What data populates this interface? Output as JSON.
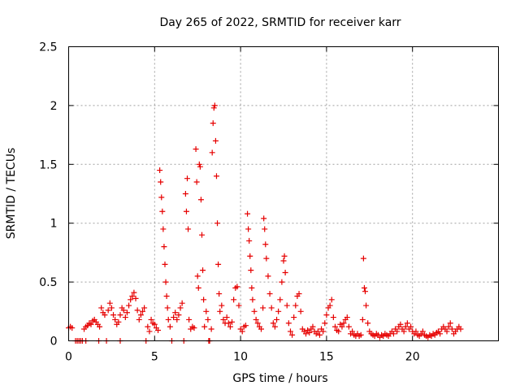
{
  "chart_data": {
    "type": "scatter",
    "title": "Day 265 of 2022, SRMTID for receiver karr",
    "xlabel": "GPS time / hours",
    "ylabel": "SRMTID / TECUs",
    "xlim": [
      0,
      25
    ],
    "ylim": [
      0,
      2.5
    ],
    "xticks": [
      0,
      5,
      10,
      15,
      20
    ],
    "yticks": [
      0,
      0.5,
      1,
      1.5,
      2,
      2.5
    ],
    "xtick_labels": [
      "0",
      "5",
      "10",
      "15",
      "20"
    ],
    "ytick_labels": [
      "0",
      "0.5",
      "1",
      "1.5",
      "2",
      "2.5"
    ],
    "grid": true,
    "marker": "+",
    "color": "#e60000",
    "series": [
      {
        "name": "SRMTID",
        "points": [
          [
            0.0,
            0.11
          ],
          [
            0.1,
            0.12
          ],
          [
            0.2,
            0.11
          ],
          [
            0.4,
            0.0
          ],
          [
            0.5,
            0.0
          ],
          [
            0.6,
            0.0
          ],
          [
            0.7,
            0.0
          ],
          [
            0.8,
            0.0
          ],
          [
            0.9,
            0.1
          ],
          [
            1.0,
            0.0
          ],
          [
            1.0,
            0.12
          ],
          [
            1.1,
            0.13
          ],
          [
            1.2,
            0.15
          ],
          [
            1.3,
            0.14
          ],
          [
            1.4,
            0.17
          ],
          [
            1.5,
            0.18
          ],
          [
            1.6,
            0.16
          ],
          [
            1.7,
            0.14
          ],
          [
            1.75,
            0.0
          ],
          [
            1.8,
            0.12
          ],
          [
            1.9,
            0.28
          ],
          [
            2.0,
            0.24
          ],
          [
            2.1,
            0.22
          ],
          [
            2.2,
            0.0
          ],
          [
            2.3,
            0.26
          ],
          [
            2.4,
            0.32
          ],
          [
            2.5,
            0.28
          ],
          [
            2.6,
            0.22
          ],
          [
            2.7,
            0.18
          ],
          [
            2.8,
            0.14
          ],
          [
            2.9,
            0.16
          ],
          [
            3.0,
            0.0
          ],
          [
            3.0,
            0.22
          ],
          [
            3.1,
            0.28
          ],
          [
            3.2,
            0.26
          ],
          [
            3.3,
            0.2
          ],
          [
            3.4,
            0.24
          ],
          [
            3.5,
            0.3
          ],
          [
            3.6,
            0.35
          ],
          [
            3.7,
            0.38
          ],
          [
            3.8,
            0.41
          ],
          [
            3.9,
            0.36
          ],
          [
            4.0,
            0.26
          ],
          [
            4.1,
            0.18
          ],
          [
            4.2,
            0.22
          ],
          [
            4.3,
            0.25
          ],
          [
            4.4,
            0.28
          ],
          [
            4.5,
            0.0
          ],
          [
            4.6,
            0.12
          ],
          [
            4.7,
            0.08
          ],
          [
            4.8,
            0.18
          ],
          [
            4.9,
            0.15
          ],
          [
            5.0,
            0.14
          ],
          [
            5.1,
            0.11
          ],
          [
            5.2,
            0.09
          ],
          [
            5.3,
            1.45
          ],
          [
            5.35,
            1.35
          ],
          [
            5.4,
            1.22
          ],
          [
            5.45,
            1.1
          ],
          [
            5.5,
            0.95
          ],
          [
            5.55,
            0.8
          ],
          [
            5.6,
            0.65
          ],
          [
            5.65,
            0.5
          ],
          [
            5.7,
            0.38
          ],
          [
            5.75,
            0.28
          ],
          [
            5.8,
            0.18
          ],
          [
            5.9,
            0.12
          ],
          [
            6.0,
            0.0
          ],
          [
            6.1,
            0.2
          ],
          [
            6.2,
            0.24
          ],
          [
            6.3,
            0.18
          ],
          [
            6.4,
            0.22
          ],
          [
            6.5,
            0.28
          ],
          [
            6.6,
            0.32
          ],
          [
            6.7,
            0.0
          ],
          [
            6.8,
            1.25
          ],
          [
            6.85,
            1.1
          ],
          [
            6.9,
            1.38
          ],
          [
            6.95,
            0.95
          ],
          [
            7.0,
            0.18
          ],
          [
            7.1,
            0.1
          ],
          [
            7.2,
            0.12
          ],
          [
            7.3,
            0.11
          ],
          [
            7.4,
            1.63
          ],
          [
            7.45,
            1.35
          ],
          [
            7.5,
            0.55
          ],
          [
            7.55,
            0.45
          ],
          [
            7.6,
            1.5
          ],
          [
            7.65,
            1.48
          ],
          [
            7.7,
            1.2
          ],
          [
            7.75,
            0.9
          ],
          [
            7.8,
            0.6
          ],
          [
            7.85,
            0.35
          ],
          [
            7.9,
            0.12
          ],
          [
            8.0,
            0.25
          ],
          [
            8.1,
            0.18
          ],
          [
            8.15,
            0.0
          ],
          [
            8.2,
            0.0
          ],
          [
            8.3,
            0.1
          ],
          [
            8.35,
            1.6
          ],
          [
            8.4,
            1.85
          ],
          [
            8.45,
            1.98
          ],
          [
            8.5,
            2.0
          ],
          [
            8.55,
            1.7
          ],
          [
            8.6,
            1.4
          ],
          [
            8.65,
            1.0
          ],
          [
            8.7,
            0.65
          ],
          [
            8.75,
            0.4
          ],
          [
            8.8,
            0.25
          ],
          [
            8.9,
            0.3
          ],
          [
            9.0,
            0.18
          ],
          [
            9.1,
            0.15
          ],
          [
            9.2,
            0.2
          ],
          [
            9.3,
            0.15
          ],
          [
            9.4,
            0.12
          ],
          [
            9.5,
            0.16
          ],
          [
            9.6,
            0.35
          ],
          [
            9.7,
            0.45
          ],
          [
            9.8,
            0.46
          ],
          [
            9.9,
            0.3
          ],
          [
            10.0,
            0.1
          ],
          [
            10.1,
            0.08
          ],
          [
            10.2,
            0.12
          ],
          [
            10.3,
            0.13
          ],
          [
            10.4,
            1.08
          ],
          [
            10.45,
            0.95
          ],
          [
            10.5,
            0.85
          ],
          [
            10.55,
            0.72
          ],
          [
            10.6,
            0.6
          ],
          [
            10.65,
            0.45
          ],
          [
            10.7,
            0.35
          ],
          [
            10.8,
            0.25
          ],
          [
            10.9,
            0.18
          ],
          [
            11.0,
            0.15
          ],
          [
            11.1,
            0.12
          ],
          [
            11.2,
            0.1
          ],
          [
            11.3,
            0.28
          ],
          [
            11.35,
            1.04
          ],
          [
            11.4,
            0.95
          ],
          [
            11.45,
            0.82
          ],
          [
            11.5,
            0.7
          ],
          [
            11.6,
            0.55
          ],
          [
            11.7,
            0.4
          ],
          [
            11.8,
            0.28
          ],
          [
            11.9,
            0.15
          ],
          [
            12.0,
            0.12
          ],
          [
            12.1,
            0.18
          ],
          [
            12.2,
            0.25
          ],
          [
            12.3,
            0.35
          ],
          [
            12.4,
            0.5
          ],
          [
            12.5,
            0.68
          ],
          [
            12.55,
            0.72
          ],
          [
            12.6,
            0.58
          ],
          [
            12.7,
            0.3
          ],
          [
            12.8,
            0.15
          ],
          [
            12.9,
            0.08
          ],
          [
            13.0,
            0.05
          ],
          [
            13.1,
            0.2
          ],
          [
            13.2,
            0.3
          ],
          [
            13.3,
            0.38
          ],
          [
            13.4,
            0.4
          ],
          [
            13.5,
            0.25
          ],
          [
            13.6,
            0.1
          ],
          [
            13.7,
            0.08
          ],
          [
            13.8,
            0.06
          ],
          [
            13.9,
            0.09
          ],
          [
            14.0,
            0.07
          ],
          [
            14.1,
            0.1
          ],
          [
            14.2,
            0.12
          ],
          [
            14.3,
            0.08
          ],
          [
            14.4,
            0.06
          ],
          [
            14.5,
            0.08
          ],
          [
            14.6,
            0.05
          ],
          [
            14.7,
            0.1
          ],
          [
            14.8,
            0.08
          ],
          [
            14.9,
            0.15
          ],
          [
            15.0,
            0.22
          ],
          [
            15.1,
            0.28
          ],
          [
            15.2,
            0.3
          ],
          [
            15.3,
            0.35
          ],
          [
            15.4,
            0.2
          ],
          [
            15.5,
            0.12
          ],
          [
            15.6,
            0.09
          ],
          [
            15.7,
            0.08
          ],
          [
            15.8,
            0.14
          ],
          [
            15.9,
            0.12
          ],
          [
            16.0,
            0.15
          ],
          [
            16.1,
            0.18
          ],
          [
            16.2,
            0.2
          ],
          [
            16.3,
            0.12
          ],
          [
            16.4,
            0.06
          ],
          [
            16.5,
            0.08
          ],
          [
            16.6,
            0.05
          ],
          [
            16.7,
            0.04
          ],
          [
            16.8,
            0.06
          ],
          [
            16.9,
            0.04
          ],
          [
            17.0,
            0.05
          ],
          [
            17.1,
            0.18
          ],
          [
            17.15,
            0.7
          ],
          [
            17.2,
            0.45
          ],
          [
            17.25,
            0.42
          ],
          [
            17.3,
            0.3
          ],
          [
            17.4,
            0.15
          ],
          [
            17.5,
            0.08
          ],
          [
            17.6,
            0.06
          ],
          [
            17.7,
            0.05
          ],
          [
            17.8,
            0.04
          ],
          [
            17.9,
            0.06
          ],
          [
            18.0,
            0.05
          ],
          [
            18.1,
            0.03
          ],
          [
            18.2,
            0.05
          ],
          [
            18.3,
            0.04
          ],
          [
            18.4,
            0.06
          ],
          [
            18.5,
            0.05
          ],
          [
            18.6,
            0.04
          ],
          [
            18.7,
            0.06
          ],
          [
            18.8,
            0.08
          ],
          [
            18.9,
            0.06
          ],
          [
            19.0,
            0.1
          ],
          [
            19.1,
            0.08
          ],
          [
            19.2,
            0.12
          ],
          [
            19.3,
            0.14
          ],
          [
            19.4,
            0.1
          ],
          [
            19.5,
            0.08
          ],
          [
            19.6,
            0.12
          ],
          [
            19.7,
            0.15
          ],
          [
            19.8,
            0.1
          ],
          [
            19.9,
            0.12
          ],
          [
            20.0,
            0.08
          ],
          [
            20.1,
            0.06
          ],
          [
            20.2,
            0.08
          ],
          [
            20.3,
            0.05
          ],
          [
            20.4,
            0.04
          ],
          [
            20.5,
            0.06
          ],
          [
            20.6,
            0.08
          ],
          [
            20.7,
            0.05
          ],
          [
            20.8,
            0.04
          ],
          [
            20.9,
            0.03
          ],
          [
            21.0,
            0.05
          ],
          [
            21.1,
            0.04
          ],
          [
            21.2,
            0.06
          ],
          [
            21.3,
            0.05
          ],
          [
            21.4,
            0.07
          ],
          [
            21.5,
            0.08
          ],
          [
            21.6,
            0.06
          ],
          [
            21.7,
            0.1
          ],
          [
            21.8,
            0.12
          ],
          [
            21.9,
            0.1
          ],
          [
            22.0,
            0.08
          ],
          [
            22.1,
            0.12
          ],
          [
            22.2,
            0.15
          ],
          [
            22.3,
            0.1
          ],
          [
            22.4,
            0.06
          ],
          [
            22.5,
            0.08
          ],
          [
            22.6,
            0.1
          ],
          [
            22.7,
            0.12
          ],
          [
            22.8,
            0.1
          ]
        ]
      }
    ]
  }
}
